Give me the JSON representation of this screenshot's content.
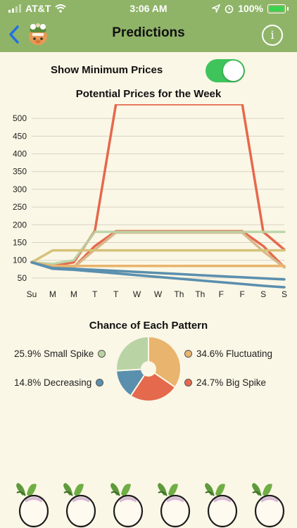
{
  "status_bar": {
    "carrier": "AT&T",
    "time": "3:06 AM",
    "battery": "100%",
    "icons": [
      "signal-icon",
      "wifi-icon",
      "location-icon",
      "alarm-icon",
      "battery-charging-icon"
    ]
  },
  "header": {
    "title": "Predictions",
    "back_icon": "chevron-left-icon",
    "avatar_icon": "villager-avatar-icon",
    "info_label": "i"
  },
  "toggle": {
    "label": "Show Minimum Prices",
    "on": true
  },
  "colors": {
    "header": "#8fb468",
    "background": "#fbf7e6",
    "small_spike": "#b9d3a5",
    "fluctuating": "#e9b46d",
    "decreasing": "#5a8fae",
    "big_spike": "#e5694d",
    "toggle_on": "#3fc45c"
  },
  "chart_data": [
    {
      "type": "line",
      "title": "Potential Prices for the Week",
      "x": [
        "Su",
        "M",
        "M",
        "T",
        "T",
        "W",
        "W",
        "Th",
        "Th",
        "F",
        "F",
        "S",
        "S"
      ],
      "yticks": [
        50,
        100,
        150,
        200,
        250,
        300,
        350,
        400,
        450,
        500
      ],
      "ylim": [
        20,
        540
      ],
      "grid": true,
      "legend": "none",
      "series": [
        {
          "color": "#e5694d",
          "values": [
            94,
            85,
            94,
            183,
            540,
            540,
            540,
            540,
            540,
            540,
            540,
            180,
            130
          ]
        },
        {
          "color": "#e5694d",
          "values": [
            94,
            80,
            80,
            140,
            182,
            182,
            182,
            182,
            182,
            182,
            182,
            140,
            80
          ]
        },
        {
          "color": "#d8b88c",
          "values": [
            94,
            80,
            80,
            130,
            178,
            178,
            178,
            178,
            178,
            178,
            178,
            125,
            80
          ]
        },
        {
          "color": "#b9d3a5",
          "values": [
            94,
            90,
            100,
            180,
            180,
            180,
            180,
            180,
            180,
            180,
            180,
            180,
            180
          ]
        },
        {
          "color": "#d4c27a",
          "values": [
            94,
            128,
            128,
            128,
            128,
            128,
            128,
            128,
            128,
            128,
            128,
            128,
            128
          ]
        },
        {
          "color": "#e9b46d",
          "values": [
            94,
            84,
            84,
            84,
            84,
            84,
            84,
            84,
            84,
            84,
            84,
            84,
            84
          ]
        },
        {
          "color": "#5a8fae",
          "values": [
            94,
            78,
            76,
            73,
            70,
            67,
            64,
            61,
            58,
            55,
            52,
            49,
            46
          ]
        },
        {
          "color": "#5a8fae",
          "values": [
            94,
            76,
            73,
            68,
            63,
            58,
            53,
            48,
            43,
            38,
            33,
            28,
            24
          ]
        }
      ]
    },
    {
      "type": "pie",
      "title": "Chance of Each Pattern",
      "legend": "left-right",
      "slices": [
        {
          "label": "34.6% Fluctuating",
          "value": 34.6,
          "color": "#e9b46d"
        },
        {
          "label": "24.7% Big Spike",
          "value": 24.7,
          "color": "#e5694d"
        },
        {
          "label": "14.8% Decreasing",
          "value": 14.8,
          "color": "#5a8fae"
        },
        {
          "label": "25.9% Small Spike",
          "value": 25.9,
          "color": "#b9d3a5"
        }
      ]
    }
  ],
  "footer": {
    "decoration_icon": "turnip-icon",
    "count": 6
  }
}
